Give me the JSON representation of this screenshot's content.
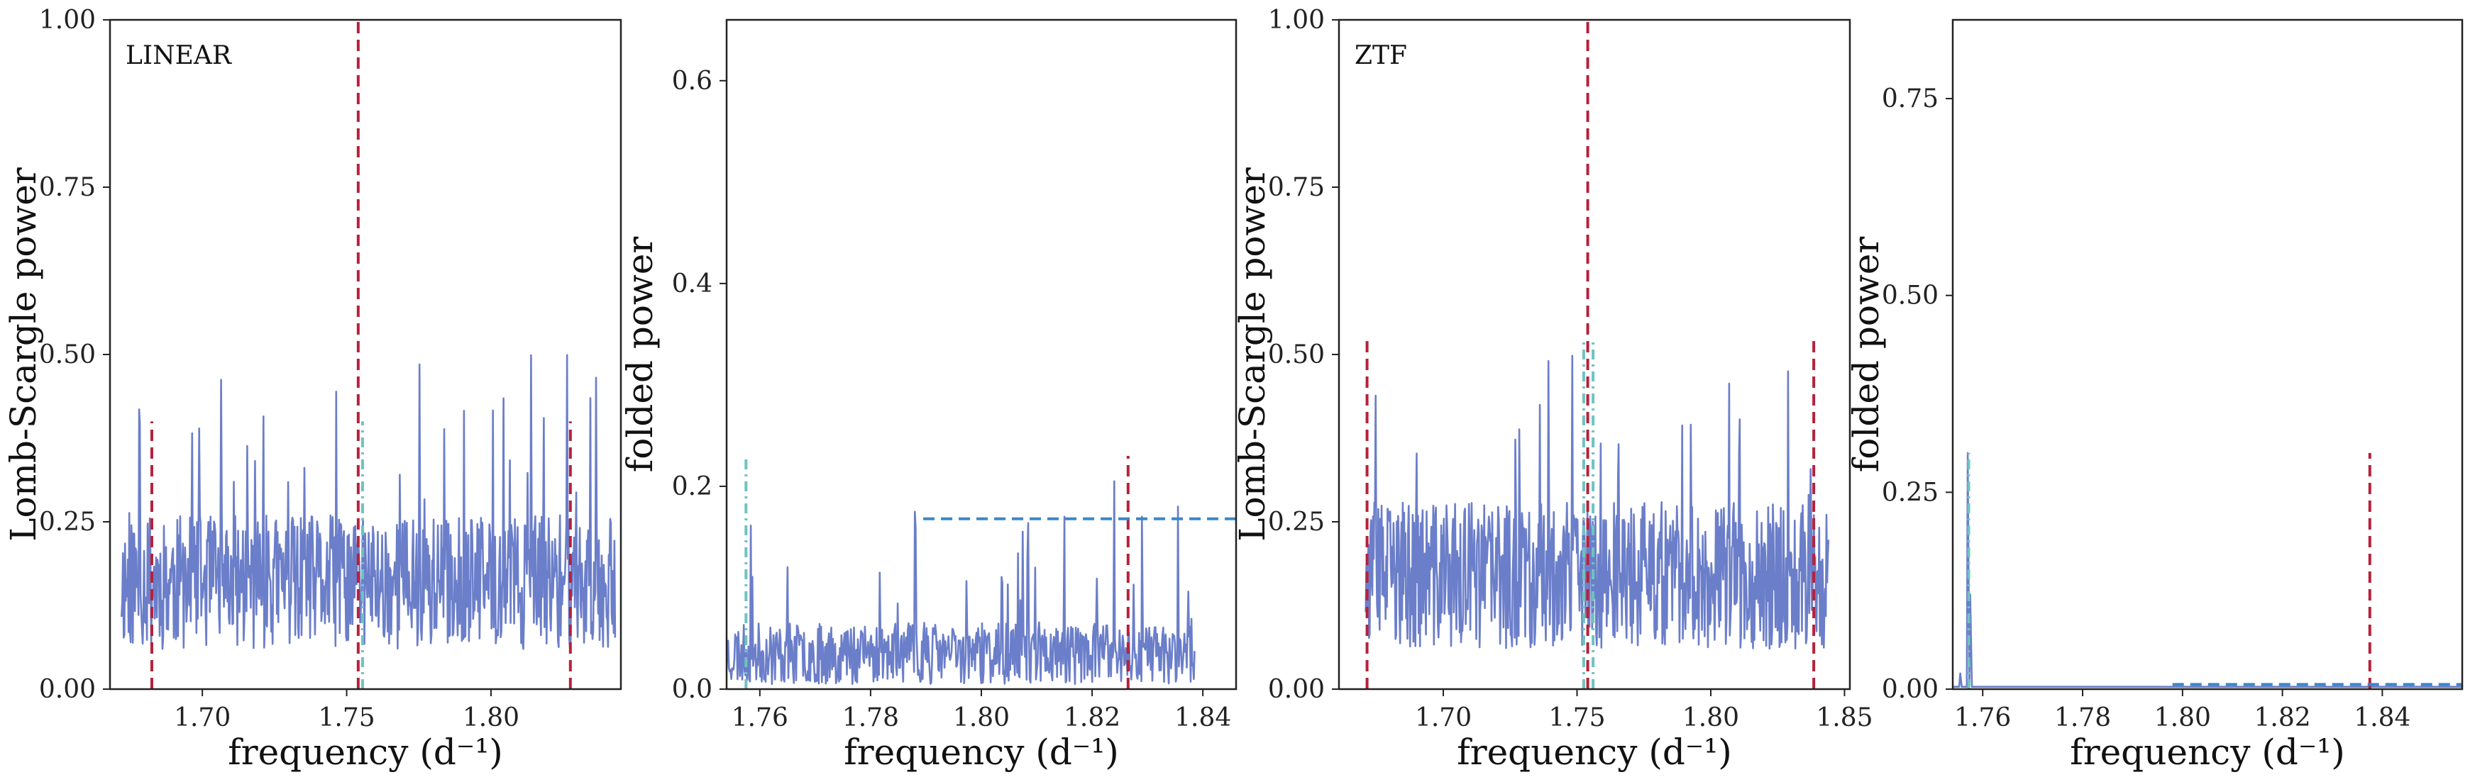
{
  "chart_data": [
    {
      "type": "line",
      "panel_label": "LINEAR",
      "xlabel": "frequency (d⁻¹)",
      "ylabel": "Lomb-Scargle power",
      "xlim": [
        1.668,
        1.845
      ],
      "ylim": [
        0,
        1.0
      ],
      "xticks": [
        1.7,
        1.75,
        1.8
      ],
      "xtick_labels": [
        "1.70",
        "1.75",
        "1.80"
      ],
      "yticks": [
        0,
        0.25,
        0.5,
        0.75,
        1.0
      ],
      "ytick_labels": [
        "0.00",
        "0.25",
        "0.50",
        "0.75",
        "1.00"
      ],
      "series": [
        {
          "kind": "noise",
          "color": "#6b7ec9",
          "x_start": 1.672,
          "x_end": 1.843,
          "n": 700,
          "base": 0.16,
          "amp": 0.1,
          "spike_max": 0.5,
          "spike_rate": 0.05,
          "seed": 11
        }
      ],
      "vlines": [
        {
          "x": 1.754,
          "y0": 0,
          "y1": 1.0,
          "color": "#b5223b",
          "dash": "dashed"
        },
        {
          "x": 1.6825,
          "y0": 0,
          "y1": 0.4,
          "color": "#b5223b",
          "dash": "dashed"
        },
        {
          "x": 1.8275,
          "y0": 0,
          "y1": 0.4,
          "color": "#b5223b",
          "dash": "dashed"
        },
        {
          "x": 1.7555,
          "y0": 0,
          "y1": 0.4,
          "color": "#6ec3c0",
          "dash": "dashdot"
        }
      ],
      "hlines": [],
      "grid": false
    },
    {
      "type": "line",
      "panel_label": "",
      "xlabel": "frequency (d⁻¹)",
      "ylabel": "folded power",
      "xlim": [
        1.754,
        1.846
      ],
      "ylim": [
        0,
        0.66
      ],
      "xticks": [
        1.76,
        1.78,
        1.8,
        1.82,
        1.84
      ],
      "xtick_labels": [
        "1.76",
        "1.78",
        "1.80",
        "1.82",
        "1.84"
      ],
      "yticks": [
        0,
        0.2,
        0.4,
        0.6
      ],
      "ytick_labels": [
        "0.0",
        "0.2",
        "0.4",
        "0.6"
      ],
      "series": [
        {
          "kind": "noise",
          "color": "#6b7ec9",
          "x_start": 1.754,
          "x_end": 1.8385,
          "n": 600,
          "base": 0.035,
          "amp": 0.03,
          "spike_max": 0.17,
          "spike_rate": 0.04,
          "seed": 23,
          "peaks": [
            [
              1.788,
              0.175
            ],
            [
              1.815,
              0.17
            ],
            [
              1.824,
              0.205
            ],
            [
              1.829,
              0.17
            ],
            [
              1.8355,
              0.18
            ]
          ]
        }
      ],
      "vlines": [
        {
          "x": 1.8265,
          "y0": 0,
          "y1": 0.23,
          "color": "#b5223b",
          "dash": "dashed"
        },
        {
          "x": 1.7575,
          "y0": 0,
          "y1": 0.23,
          "color": "#6ec3c0",
          "dash": "dashdot"
        }
      ],
      "hlines": [
        {
          "y": 0.168,
          "x0": 1.7895,
          "x1": 1.846,
          "color": "#3a87c8",
          "dash": "dashed"
        }
      ],
      "grid": false
    },
    {
      "type": "line",
      "panel_label": "ZTF",
      "xlabel": "frequency (d⁻¹)",
      "ylabel": "Lomb-Scargle power",
      "xlim": [
        1.661,
        1.852
      ],
      "ylim": [
        0,
        1.0
      ],
      "xticks": [
        1.7,
        1.75,
        1.8,
        1.85
      ],
      "xtick_labels": [
        "1.70",
        "1.75",
        "1.80",
        "1.85"
      ],
      "yticks": [
        0,
        0.25,
        0.5,
        0.75,
        1.0
      ],
      "ytick_labels": [
        "0.00",
        "0.25",
        "0.50",
        "0.75",
        "1.00"
      ],
      "series": [
        {
          "kind": "noise",
          "color": "#6b7ec9",
          "x_start": 1.671,
          "x_end": 1.844,
          "n": 700,
          "base": 0.17,
          "amp": 0.11,
          "spike_max": 0.5,
          "spike_rate": 0.05,
          "seed": 37
        }
      ],
      "vlines": [
        {
          "x": 1.754,
          "y0": 0,
          "y1": 1.0,
          "color": "#b5223b",
          "dash": "dashed"
        },
        {
          "x": 1.6715,
          "y0": 0,
          "y1": 0.52,
          "color": "#b5223b",
          "dash": "dashed"
        },
        {
          "x": 1.8385,
          "y0": 0,
          "y1": 0.52,
          "color": "#b5223b",
          "dash": "dashed"
        },
        {
          "x": 1.7525,
          "y0": 0,
          "y1": 0.52,
          "color": "#6ec3c0",
          "dash": "dashdot"
        },
        {
          "x": 1.756,
          "y0": 0,
          "y1": 0.52,
          "color": "#6ec3c0",
          "dash": "dashdot"
        }
      ],
      "hlines": [],
      "grid": false
    },
    {
      "type": "line",
      "panel_label": "",
      "xlabel": "frequency (d⁻¹)",
      "ylabel": "folded power",
      "xlim": [
        1.754,
        1.856
      ],
      "ylim": [
        0,
        0.85
      ],
      "xticks": [
        1.76,
        1.78,
        1.8,
        1.82,
        1.84
      ],
      "xtick_labels": [
        "1.76",
        "1.78",
        "1.80",
        "1.82",
        "1.84"
      ],
      "yticks": [
        0,
        0.25,
        0.5,
        0.75
      ],
      "ytick_labels": [
        "0.00",
        "0.25",
        "0.50",
        "0.75"
      ],
      "series": [
        {
          "kind": "flat",
          "color": "#6b7ec9",
          "x_start": 1.754,
          "x_end": 1.856,
          "level": 0.003,
          "peaks": [
            [
              1.757,
              0.3
            ],
            [
              1.7575,
              0.12
            ],
            [
              1.7555,
              0.02
            ]
          ]
        }
      ],
      "vlines": [
        {
          "x": 1.8375,
          "y0": 0,
          "y1": 0.3,
          "color": "#b5223b",
          "dash": "dashed"
        },
        {
          "x": 1.7572,
          "y0": 0,
          "y1": 0.3,
          "color": "#6ec3c0",
          "dash": "dashdot"
        }
      ],
      "hlines": [
        {
          "y": 0.006,
          "x0": 1.798,
          "x1": 1.856,
          "color": "#3a87c8",
          "dash": "dashed"
        }
      ],
      "grid": false
    }
  ]
}
